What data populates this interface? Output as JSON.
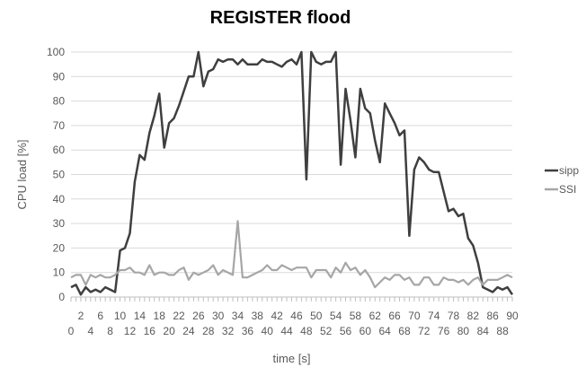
{
  "chart_data": {
    "type": "line",
    "title": "REGISTER flood",
    "xlabel": "time [s]",
    "ylabel": "CPU load [%]",
    "xlim": [
      0,
      90
    ],
    "ylim": [
      0,
      100
    ],
    "yticks": [
      0,
      10,
      20,
      30,
      40,
      50,
      60,
      70,
      80,
      90,
      100
    ],
    "xticks": [
      0,
      2,
      4,
      6,
      8,
      10,
      12,
      14,
      16,
      18,
      20,
      22,
      24,
      26,
      28,
      30,
      32,
      34,
      36,
      38,
      40,
      42,
      44,
      46,
      48,
      50,
      52,
      54,
      56,
      58,
      60,
      62,
      64,
      66,
      68,
      70,
      72,
      74,
      76,
      78,
      80,
      82,
      84,
      86,
      88,
      90
    ],
    "grid": "horizontal",
    "legend_position": "right",
    "x": [
      0,
      1,
      2,
      3,
      4,
      5,
      6,
      7,
      8,
      9,
      10,
      11,
      12,
      13,
      14,
      15,
      16,
      17,
      18,
      19,
      20,
      21,
      22,
      23,
      24,
      25,
      26,
      27,
      28,
      29,
      30,
      31,
      32,
      33,
      34,
      35,
      36,
      37,
      38,
      39,
      40,
      41,
      42,
      43,
      44,
      45,
      46,
      47,
      48,
      49,
      50,
      51,
      52,
      53,
      54,
      55,
      56,
      57,
      58,
      59,
      60,
      61,
      62,
      63,
      64,
      65,
      66,
      67,
      68,
      69,
      70,
      71,
      72,
      73,
      74,
      75,
      76,
      77,
      78,
      79,
      80,
      81,
      82,
      83,
      84,
      85,
      86,
      87,
      88,
      89,
      90
    ],
    "series": [
      {
        "name": "sipp",
        "color": "#3f3f3f",
        "values": [
          4,
          5,
          1,
          4,
          2,
          3,
          2,
          4,
          3,
          2,
          19,
          20,
          26,
          47,
          58,
          56,
          67,
          74,
          83,
          61,
          71,
          73,
          78,
          84,
          90,
          90,
          100,
          86,
          92,
          93,
          97,
          96,
          97,
          97,
          95,
          97,
          95,
          95,
          95,
          97,
          96,
          96,
          95,
          94,
          96,
          97,
          95,
          100,
          48,
          100,
          96,
          95,
          96,
          96,
          100,
          54,
          85,
          72,
          57,
          85,
          77,
          75,
          64,
          55,
          79,
          75,
          71,
          66,
          68,
          25,
          52,
          57,
          55,
          52,
          51,
          51,
          43,
          35,
          36,
          33,
          34,
          24,
          21,
          14,
          4,
          3,
          2,
          4,
          3,
          4,
          1
        ]
      },
      {
        "name": "SSI",
        "color": "#a6a6a6",
        "values": [
          8,
          9,
          9,
          5,
          9,
          8,
          9,
          8,
          8,
          9,
          11,
          11,
          12,
          10,
          10,
          9,
          13,
          9,
          10,
          10,
          9,
          9,
          11,
          12,
          7,
          10,
          9,
          10,
          11,
          13,
          9,
          11,
          10,
          9,
          31,
          8,
          8,
          9,
          10,
          11,
          13,
          11,
          11,
          13,
          12,
          11,
          12,
          12,
          12,
          8,
          11,
          11,
          11,
          8,
          12,
          10,
          14,
          11,
          12,
          9,
          11,
          8,
          4,
          6,
          8,
          7,
          9,
          9,
          7,
          8,
          5,
          5,
          8,
          8,
          5,
          5,
          8,
          7,
          7,
          6,
          7,
          5,
          7,
          8,
          5,
          7,
          7,
          7,
          8,
          9,
          8
        ]
      }
    ]
  }
}
